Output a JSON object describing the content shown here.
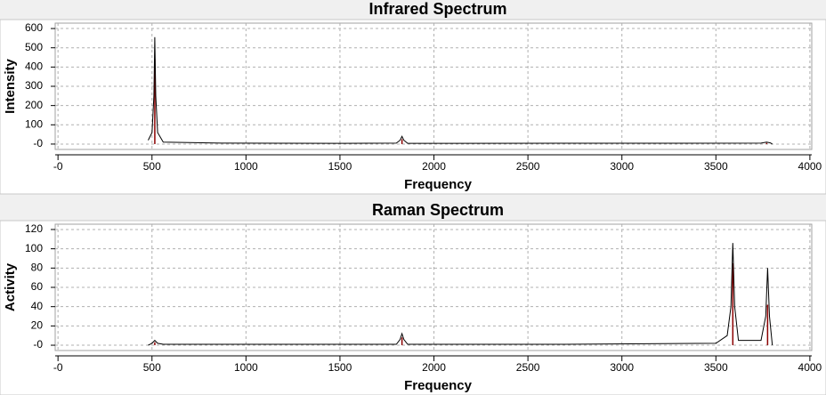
{
  "chart_data": [
    {
      "type": "spectrum",
      "title": "Infrared Spectrum",
      "x_label": "Frequency",
      "y_label": "Intensity",
      "x": [
        480,
        500,
        510,
        515,
        520,
        530,
        560,
        870,
        1500,
        1800,
        1820,
        1830,
        1840,
        1860,
        3740,
        3770,
        3790,
        3800
      ],
      "values": [
        20,
        60,
        250,
        555,
        250,
        60,
        10,
        5,
        4,
        5,
        20,
        40,
        20,
        4,
        5,
        10,
        6,
        0
      ],
      "color": "#000000",
      "peaks": {
        "x": [
          515,
          1830,
          3770
        ],
        "values": [
          440,
          25,
          6
        ],
        "color": "#8b0000"
      },
      "xlim": [
        -15,
        4010
      ],
      "ylim": [
        -28,
        628
      ],
      "xticks": [
        {
          "value": 0,
          "label": "-0"
        },
        500,
        1000,
        1500,
        2000,
        2500,
        3000,
        3500,
        4000
      ],
      "yticks": [
        {
          "value": 0,
          "label": "-0"
        },
        100,
        200,
        300,
        400,
        500,
        600
      ],
      "grid": true
    },
    {
      "type": "spectrum",
      "title": "Raman Spectrum",
      "x_label": "Frequency",
      "y_label": "Activity",
      "x": [
        480,
        500,
        515,
        530,
        560,
        1800,
        1820,
        1830,
        1840,
        1860,
        2680,
        3500,
        3560,
        3580,
        3590,
        3600,
        3620,
        3740,
        3765,
        3775,
        3785,
        3800
      ],
      "values": [
        0,
        2,
        5,
        2,
        1,
        1,
        6,
        12,
        6,
        1,
        1,
        2,
        10,
        40,
        106,
        40,
        5,
        5,
        30,
        80,
        30,
        0
      ],
      "color": "#000000",
      "peaks": {
        "x": [
          515,
          1830,
          3590,
          3775
        ],
        "values": [
          3,
          8,
          85,
          42
        ],
        "color": "#8b0000"
      },
      "xlim": [
        -15,
        4010
      ],
      "ylim": [
        -5.5,
        125.5
      ],
      "xticks": [
        {
          "value": 0,
          "label": "-0"
        },
        500,
        1000,
        1500,
        2000,
        2500,
        3000,
        3500,
        4000
      ],
      "yticks": [
        {
          "value": 0,
          "label": "-0"
        },
        20,
        40,
        60,
        80,
        100,
        120
      ],
      "grid": true
    }
  ]
}
